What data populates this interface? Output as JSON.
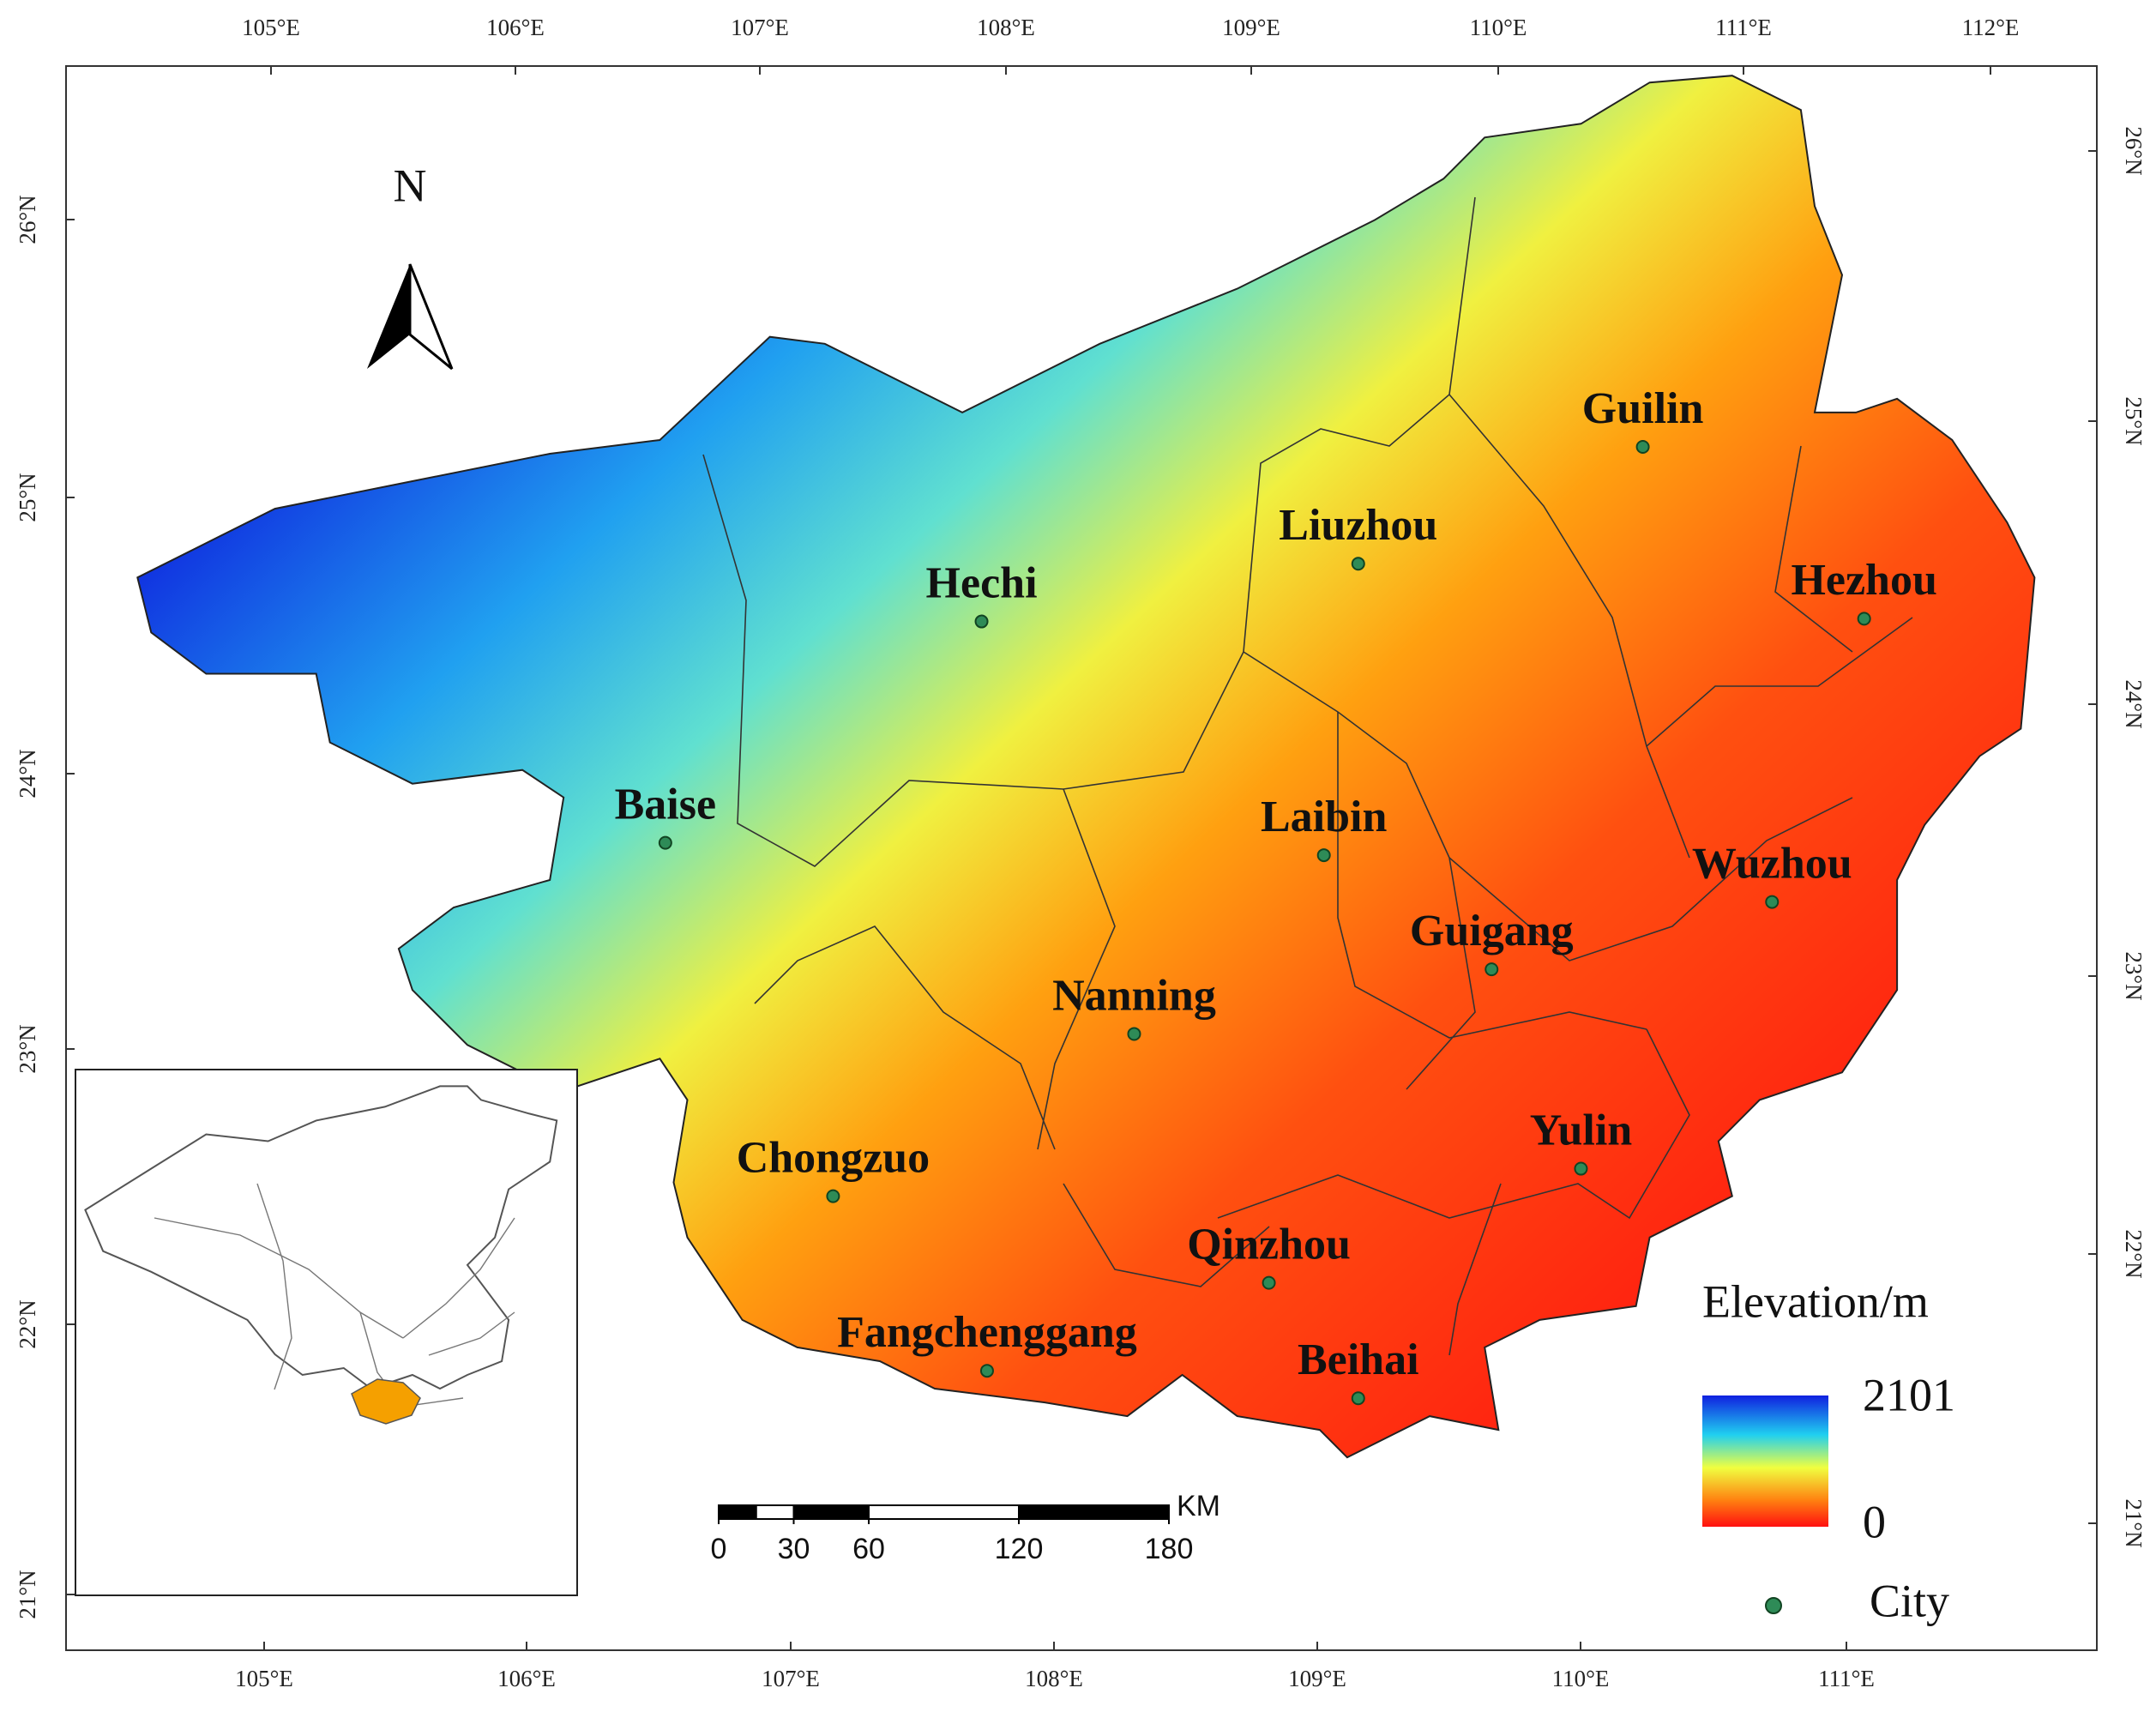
{
  "north_arrow": "N",
  "top_axis": [
    "105°E",
    "106°E",
    "107°E",
    "108°E",
    "109°E",
    "110°E",
    "111°E",
    "112°E"
  ],
  "bottom_axis": [
    "105°E",
    "106°E",
    "107°E",
    "108°E",
    "109°E",
    "110°E",
    "111°E"
  ],
  "left_axis": [
    "26°N",
    "25°N",
    "24°N",
    "23°N",
    "22°N",
    "21°N"
  ],
  "right_axis": [
    "26°N",
    "25°N",
    "24°N",
    "23°N",
    "22°N",
    "21°N"
  ],
  "cities": [
    "Guilin",
    "Liuzhou",
    "Hezhou",
    "Hechi",
    "Baise",
    "Laibin",
    "Wuzhou",
    "Guigang",
    "Nanning",
    "Yulin",
    "Chongzuo",
    "Qinzhou",
    "Fangchenggang",
    "Beihai"
  ],
  "legend": {
    "title": "Elevation/m",
    "max": 2101,
    "min": 0,
    "city": "City"
  },
  "scale_bar": {
    "unit": "KM",
    "ticks": [
      0,
      30,
      60,
      120,
      180
    ]
  }
}
